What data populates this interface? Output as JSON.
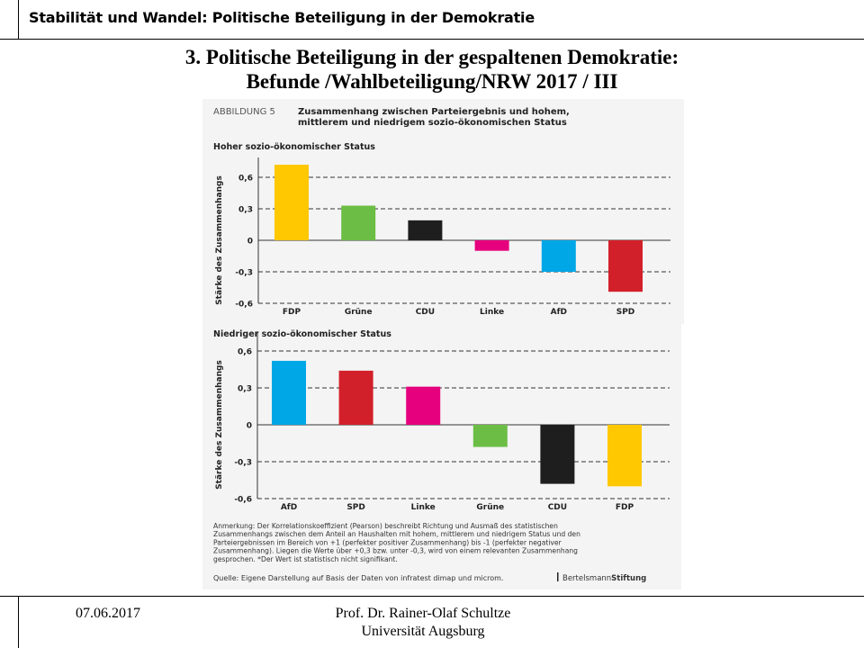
{
  "header": {
    "text": "Stabilität und Wandel: Politische Beteiligung in der Demokratie"
  },
  "slide": {
    "title_line1": "3. Politische Beteiligung in der gespaltenen Demokratie:",
    "title_line2": "Befunde /Wahlbeteiligung/NRW 2017 / III"
  },
  "figure": {
    "label": "ABBILDUNG 5",
    "title_line1": "Zusammenhang zwischen Parteiergebnis und hohem,",
    "title_line2": "mittlerem und niedrigem sozio-ökonomischen Status",
    "note_lines": [
      "Anmerkung: Der Korrelationskoeffizient (Pearson) beschreibt Richtung und Ausmaß des statistischen",
      "Zusammenhangs zwischen dem Anteil an Haushalten mit hohem, mittlerem und niedrigem Status und den",
      "Parteiergebnissen im Bereich von +1 (perfekter positiver Zusammenhang) bis -1 (perfekter negativer",
      "Zusammenhang). Liegen die Werte über +0,3 bzw. unter -0,3, wird von einem relevanten Zusammenhang",
      "gesprochen. *Der Wert ist statistisch nicht signifikant."
    ],
    "source": "Quelle: Eigene Darstellung auf Basis der Daten von infratest dimap und microm.",
    "brand_a": "Bertelsmann",
    "brand_b": "Stiftung"
  },
  "chart_data": [
    {
      "type": "bar",
      "title": "Hoher sozio-ökonomischer Status",
      "ylabel": "Stärke des Zusammenhangs",
      "xlabel": "",
      "ylim": [
        -0.6,
        0.6
      ],
      "yticks": [
        "0,6",
        "0,3",
        "0",
        "-0,3",
        "-0,6"
      ],
      "ytick_values": [
        0.6,
        0.3,
        0,
        -0.3,
        -0.6
      ],
      "grid": "dashed horizontal",
      "categories": [
        "FDP",
        "Grüne",
        "CDU",
        "Linke",
        "AfD",
        "SPD"
      ],
      "values": [
        0.72,
        0.33,
        0.19,
        -0.1,
        -0.3,
        -0.49
      ],
      "colors": [
        "#ffc800",
        "#6cbd45",
        "#1e1e1e",
        "#e6007e",
        "#00a7e7",
        "#d2202a"
      ]
    },
    {
      "type": "bar",
      "title": "Niedriger sozio-ökonomischer Status",
      "ylabel": "Stärke des Zusammenhangs",
      "xlabel": "",
      "ylim": [
        -0.6,
        0.6
      ],
      "yticks": [
        "0,6",
        "0,3",
        "0",
        "-0,3",
        "-0,6"
      ],
      "ytick_values": [
        0.6,
        0.3,
        0,
        -0.3,
        -0.6
      ],
      "grid": "dashed horizontal",
      "categories": [
        "AfD",
        "SPD",
        "Linke",
        "Grüne",
        "CDU",
        "FDP"
      ],
      "values": [
        0.52,
        0.44,
        0.31,
        -0.18,
        -0.48,
        -0.5
      ],
      "colors": [
        "#00a7e7",
        "#d2202a",
        "#e6007e",
        "#6cbd45",
        "#1e1e1e",
        "#ffc800"
      ]
    }
  ],
  "footer": {
    "date": "07.06.2017",
    "author": "Prof. Dr. Rainer-Olaf Schultze",
    "institution": "Universität Augsburg"
  }
}
